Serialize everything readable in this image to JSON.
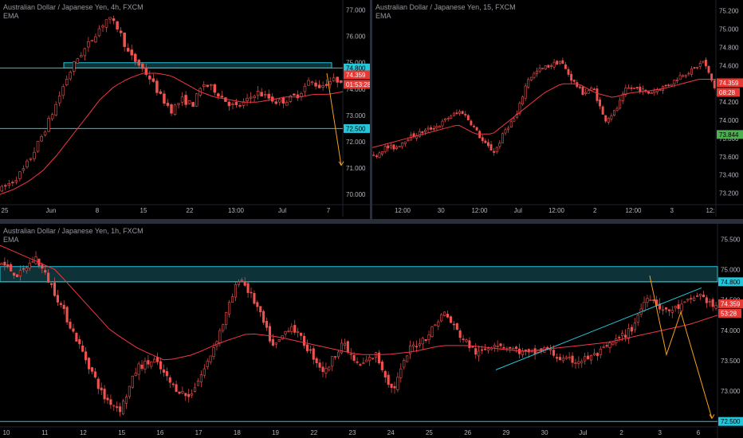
{
  "colors": {
    "background": "#000000",
    "axis_text": "#b2b5be",
    "candle_up": "#ef5350",
    "candle_down": "#ef5350",
    "ema": "#f23645",
    "zone_line": "#26c6da",
    "zone_fill": "#0d3338",
    "projection": "#f7a21b",
    "price_tag": "#e53935",
    "tag_green": "#4caf50"
  },
  "charts": [
    {
      "id": "a",
      "title": "Australian Dollar / Japanese Yen, 4h, FXCM",
      "indicator": "EMA",
      "y_ticks": [
        "77.000",
        "76.000",
        "75.000",
        "74.000",
        "73.000",
        "72.000",
        "71.000",
        "70.000"
      ],
      "x_ticks": [
        "25",
        "Jun",
        "8",
        "15",
        "22",
        "13:00",
        "Jul",
        "7"
      ],
      "price_labels": [
        {
          "text": "74.800",
          "kind": "zone"
        },
        {
          "text": "74.359",
          "kind": "price"
        },
        {
          "text": "01:53:28",
          "kind": "countdown"
        },
        {
          "text": "72.500",
          "kind": "zone"
        }
      ]
    },
    {
      "id": "b",
      "title": "Australian Dollar / Japanese Yen, 15, FXCM",
      "indicator": "EMA",
      "y_ticks": [
        "75.200",
        "75.000",
        "74.800",
        "74.600",
        "74.400",
        "74.200",
        "74.000",
        "73.800",
        "73.600",
        "73.400",
        "73.200"
      ],
      "x_ticks": [
        "12:00",
        "30",
        "12:00",
        "Jul",
        "12:00",
        "2",
        "12:00",
        "3",
        "12:"
      ],
      "price_labels": [
        {
          "text": "74.359",
          "kind": "price"
        },
        {
          "text": "08:28",
          "kind": "countdown"
        },
        {
          "text": "73.844",
          "kind": "green"
        }
      ]
    },
    {
      "id": "c",
      "title": "Australian Dollar / Japanese Yen, 1h, FXCM",
      "indicator": "EMA",
      "y_ticks": [
        "75.500",
        "75.000",
        "74.500",
        "74.000",
        "73.500",
        "73.000"
      ],
      "x_ticks": [
        "10",
        "11",
        "12",
        "15",
        "16",
        "17",
        "18",
        "19",
        "22",
        "23",
        "24",
        "25",
        "26",
        "29",
        "30",
        "Jul",
        "2",
        "3",
        "6"
      ],
      "price_labels": [
        {
          "text": "74.800",
          "kind": "zone"
        },
        {
          "text": "74.359",
          "kind": "price"
        },
        {
          "text": "53:28",
          "kind": "countdown"
        },
        {
          "text": "72.500",
          "kind": "zone"
        }
      ]
    }
  ],
  "chart_data": [
    {
      "type": "candlestick",
      "title": "Australian Dollar / Japanese Yen, 4h, FXCM",
      "ylim": [
        69.7,
        77.2
      ],
      "x_labels": [
        "25",
        "Jun",
        "8",
        "15",
        "22",
        "13:00",
        "Jul",
        "7"
      ],
      "close_path": [
        70.2,
        70.5,
        70.9,
        71.6,
        72.4,
        73.3,
        74.3,
        75.1,
        75.6,
        76.2,
        76.7,
        76.3,
        75.3,
        74.9,
        74.4,
        73.7,
        73.2,
        73.6,
        73.4,
        74.2,
        74.0,
        73.6,
        73.3,
        73.5,
        73.9,
        73.7,
        73.5,
        73.6,
        73.8,
        74.3,
        74.1,
        74.3,
        74.36
      ],
      "ema_path": [
        70.0,
        70.2,
        70.5,
        70.9,
        71.5,
        72.2,
        72.9,
        73.6,
        74.1,
        74.4,
        74.6,
        74.6,
        74.5,
        74.2,
        73.9,
        73.7,
        73.6,
        73.5,
        73.5,
        73.6,
        73.7,
        73.7,
        73.8,
        73.8,
        73.9
      ],
      "zones": [
        74.8,
        72.5
      ],
      "zone_band": [
        74.8,
        75.0
      ],
      "projection": [
        [
          74.6,
          71.1
        ]
      ],
      "last_price": 74.359
    },
    {
      "type": "candlestick",
      "title": "Australian Dollar / Japanese Yen, 15, FXCM",
      "ylim": [
        73.1,
        75.25
      ],
      "x_labels": [
        "12:00",
        "30",
        "12:00",
        "Jul",
        "12:00",
        "2",
        "12:00",
        "3",
        "12:"
      ],
      "close_path": [
        73.6,
        73.7,
        73.7,
        73.8,
        73.85,
        73.9,
        73.95,
        74.05,
        74.1,
        73.95,
        73.75,
        73.65,
        73.9,
        74.05,
        74.45,
        74.55,
        74.6,
        74.65,
        74.45,
        74.3,
        74.35,
        74.0,
        74.1,
        74.35,
        74.35,
        74.3,
        74.35,
        74.4,
        74.5,
        74.55,
        74.65,
        74.36
      ],
      "ema_path": [
        73.7,
        73.75,
        73.8,
        73.85,
        73.9,
        73.95,
        73.85,
        73.85,
        74.0,
        74.15,
        74.3,
        74.4,
        74.4,
        74.3,
        74.25,
        74.3,
        74.32,
        74.35,
        74.4,
        74.45,
        74.45
      ],
      "last_price": 74.359,
      "marked_price": 73.844
    },
    {
      "type": "candlestick",
      "title": "Australian Dollar / Japanese Yen, 1h, FXCM",
      "ylim": [
        72.45,
        75.65
      ],
      "x_labels": [
        "10",
        "11",
        "12",
        "15",
        "16",
        "17",
        "18",
        "19",
        "22",
        "23",
        "24",
        "25",
        "26",
        "29",
        "30",
        "Jul",
        "2",
        "3",
        "6"
      ],
      "close_path": [
        75.1,
        74.9,
        75.2,
        74.7,
        74.1,
        73.5,
        72.9,
        72.7,
        73.4,
        73.5,
        73.1,
        72.9,
        73.4,
        74.1,
        74.9,
        74.4,
        73.7,
        74.1,
        73.7,
        73.3,
        73.8,
        73.4,
        73.6,
        73.0,
        73.7,
        73.9,
        74.3,
        73.9,
        73.6,
        73.8,
        73.7,
        73.6,
        73.7,
        73.5,
        73.5,
        73.6,
        73.8,
        74.0,
        74.6,
        74.3,
        74.4,
        74.6,
        74.36
      ],
      "ema_path": [
        75.4,
        75.2,
        75.0,
        74.5,
        74.0,
        73.7,
        73.5,
        73.6,
        73.8,
        73.95,
        73.9,
        73.8,
        73.7,
        73.6,
        73.6,
        73.65,
        73.75,
        73.75,
        73.7,
        73.65,
        73.7,
        73.75,
        73.8,
        73.9,
        74.0,
        74.1,
        74.25
      ],
      "zones": [
        74.8,
        72.5
      ],
      "zone_band": [
        74.8,
        75.05
      ],
      "trendline": [
        [
          73.35,
          74.7
        ]
      ],
      "projection": [
        74.9,
        73.6,
        74.3,
        72.55
      ],
      "last_price": 74.359
    }
  ]
}
